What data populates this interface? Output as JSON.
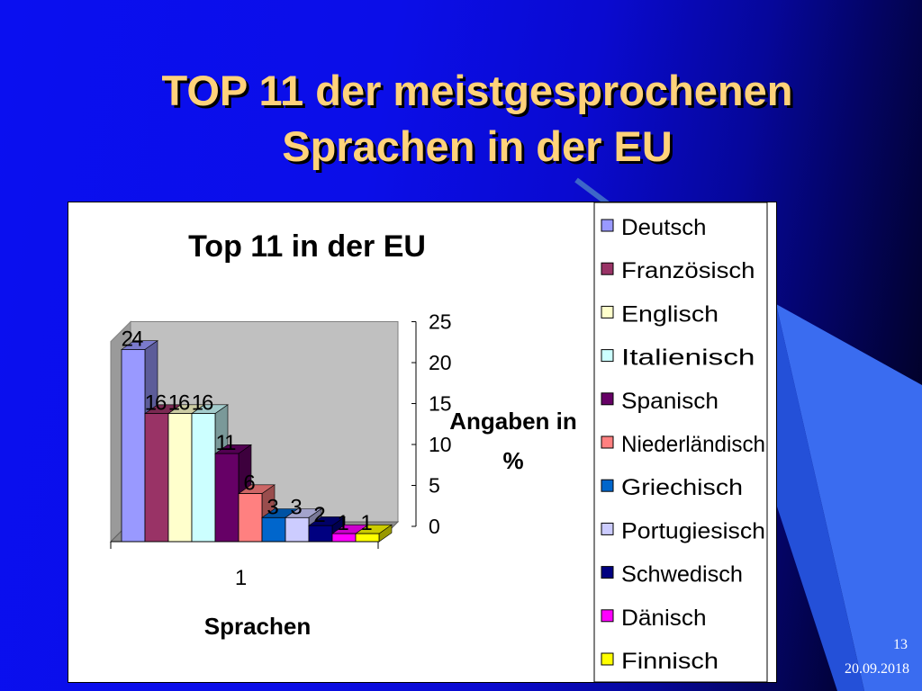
{
  "slide": {
    "title_line1": "TOP 11 der meistgesprochenen",
    "title_line2": "Sprachen in der EU",
    "page_number": "13",
    "date": "20.09.2018"
  },
  "chart_data": {
    "type": "bar",
    "title": "Top 11 in der EU",
    "xlabel": "Sprachen",
    "ylabel": "Angaben in %",
    "categories": [
      "1"
    ],
    "ylim": [
      0,
      25
    ],
    "yticks": [
      0,
      5,
      10,
      15,
      20,
      25
    ],
    "grid": false,
    "legend_position": "right",
    "series": [
      {
        "name": "Deutsch",
        "values": [
          24
        ],
        "color": "#9999ff"
      },
      {
        "name": "Französisch",
        "values": [
          16
        ],
        "color": "#993366"
      },
      {
        "name": "Englisch",
        "values": [
          16
        ],
        "color": "#ffffcc"
      },
      {
        "name": "Italienisch",
        "values": [
          16
        ],
        "color": "#ccffff"
      },
      {
        "name": "Spanisch",
        "values": [
          11
        ],
        "color": "#660066"
      },
      {
        "name": "Niederländisch",
        "values": [
          6
        ],
        "color": "#ff8080"
      },
      {
        "name": "Griechisch",
        "values": [
          3
        ],
        "color": "#0066cc"
      },
      {
        "name": "Portugiesisch",
        "values": [
          3
        ],
        "color": "#ccccff"
      },
      {
        "name": "Schwedisch",
        "values": [
          2
        ],
        "color": "#000080"
      },
      {
        "name": "Dänisch",
        "values": [
          1
        ],
        "color": "#ff00ff"
      },
      {
        "name": "Finnisch",
        "values": [
          1
        ],
        "color": "#ffff00"
      }
    ]
  }
}
